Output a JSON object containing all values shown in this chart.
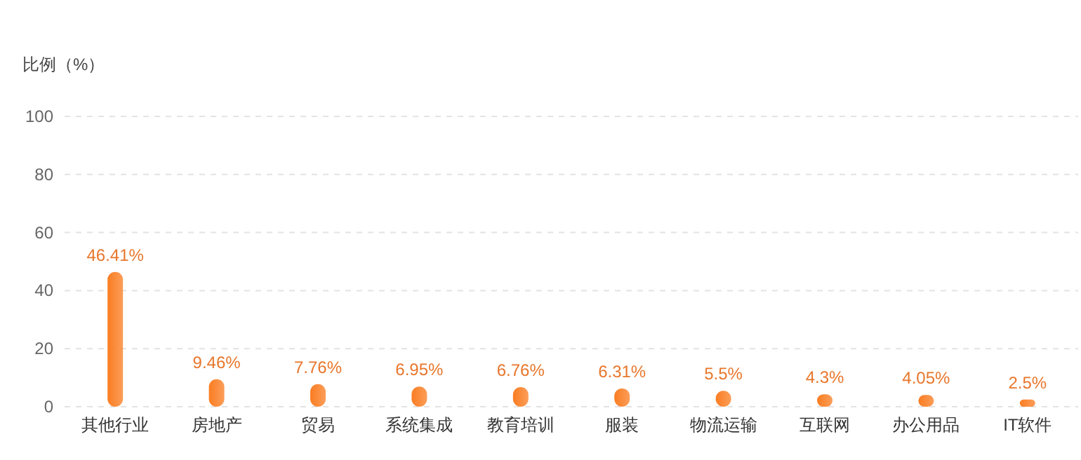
{
  "chart_data": {
    "type": "bar",
    "ylabel": "比例（%）",
    "categories": [
      "其他行业",
      "房地产",
      "贸易",
      "系统集成",
      "教育培训",
      "服装",
      "物流运输",
      "互联网",
      "办公用品",
      "IT软件"
    ],
    "series": [
      {
        "color": "#fa7d22",
        "values": [
          46.41,
          9.46,
          7.76,
          6.95,
          6.76,
          6.31,
          5.5,
          4.3,
          4.05,
          2.5
        ],
        "value_labels": [
          "46.41%",
          "9.46%",
          "7.76%",
          "6.95%",
          "6.76%",
          "6.31%",
          "5.5%",
          "4.3%",
          "4.05%",
          "2.5%"
        ]
      }
    ],
    "ylim": [
      0,
      100
    ],
    "yticks": [
      0,
      20,
      40,
      60,
      80,
      100
    ],
    "grid": "y"
  }
}
